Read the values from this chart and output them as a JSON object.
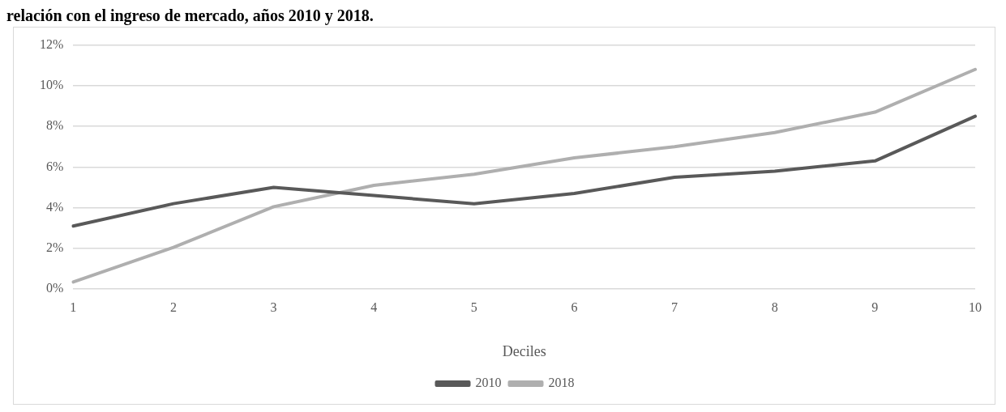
{
  "chart_data": {
    "type": "line",
    "title": "relación con el ingreso de mercado, años 2010 y 2018.",
    "xlabel": "Deciles",
    "categories": [
      "1",
      "2",
      "3",
      "4",
      "5",
      "6",
      "7",
      "8",
      "9",
      "10"
    ],
    "series": [
      {
        "name": "2010",
        "color": "#595959",
        "values": [
          3.1,
          4.2,
          5.0,
          4.6,
          4.2,
          4.7,
          5.5,
          5.8,
          6.3,
          8.5
        ]
      },
      {
        "name": "2018",
        "color": "#afafaf",
        "values": [
          0.35,
          2.05,
          4.05,
          5.1,
          5.65,
          6.45,
          7.0,
          7.7,
          8.7,
          10.8
        ]
      }
    ],
    "ylim": [
      0,
      12
    ],
    "yticks": [
      {
        "value": 0,
        "label": "0%"
      },
      {
        "value": 2,
        "label": "2%"
      },
      {
        "value": 4,
        "label": "4%"
      },
      {
        "value": 6,
        "label": "6%"
      },
      {
        "value": 8,
        "label": "8%"
      },
      {
        "value": 10,
        "label": "10%"
      },
      {
        "value": 12,
        "label": "12%"
      }
    ],
    "grid": "y",
    "legend": "bottom",
    "marker": "none",
    "line_style": "solid"
  }
}
